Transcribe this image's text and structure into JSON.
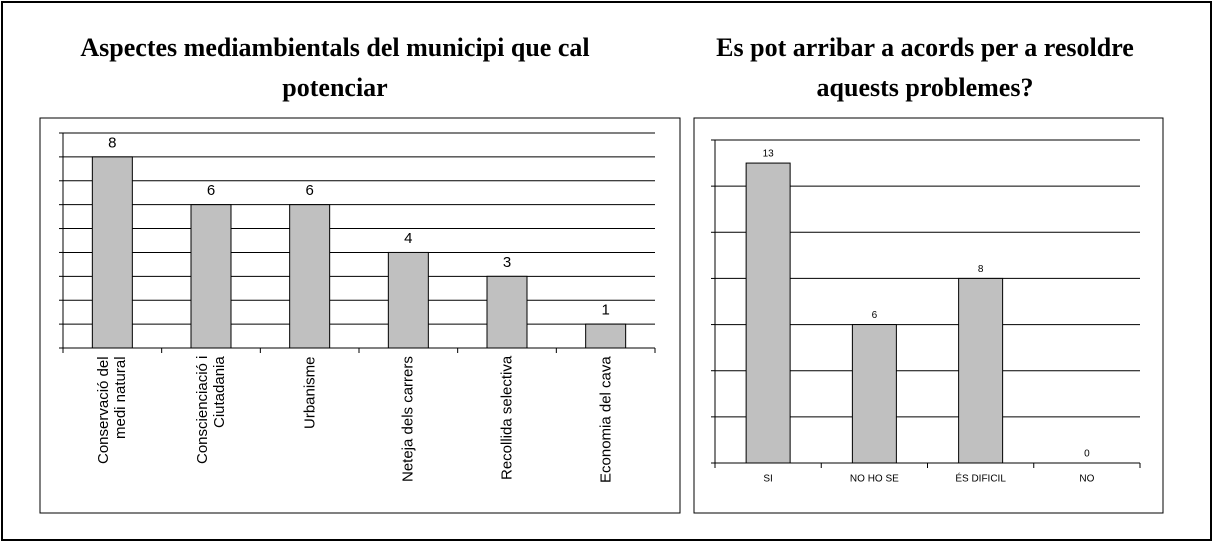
{
  "chart_data": [
    {
      "type": "bar",
      "title": "Aspectes mediambientals del municipi que cal potenciar",
      "categories": [
        "Conservació del medi natural",
        "Conscienciació i Ciutadania",
        "Urbanisme",
        "Neteja dels carrers",
        "Recollida selectiva",
        "Economia del cava"
      ],
      "values": [
        8,
        6,
        6,
        4,
        3,
        1
      ],
      "color": "#c0c0c0",
      "ylim": [
        0,
        9
      ],
      "yticks": [
        0,
        1,
        2,
        3,
        4,
        5,
        6,
        7,
        8,
        9
      ],
      "grid": true,
      "xlabel_rotation": 90
    },
    {
      "type": "bar",
      "title": "Es pot arribar a acords per a resoldre aquests problemes?",
      "categories": [
        "SI",
        "NO HO SE",
        "ÉS DIFICIL",
        "NO"
      ],
      "values": [
        13,
        6,
        8,
        0
      ],
      "color": "#c0c0c0",
      "ylim": [
        0,
        14
      ],
      "yticks": [
        0,
        2,
        4,
        6,
        8,
        10,
        12,
        14
      ],
      "grid": true,
      "xlabel_rotation": 0
    }
  ]
}
